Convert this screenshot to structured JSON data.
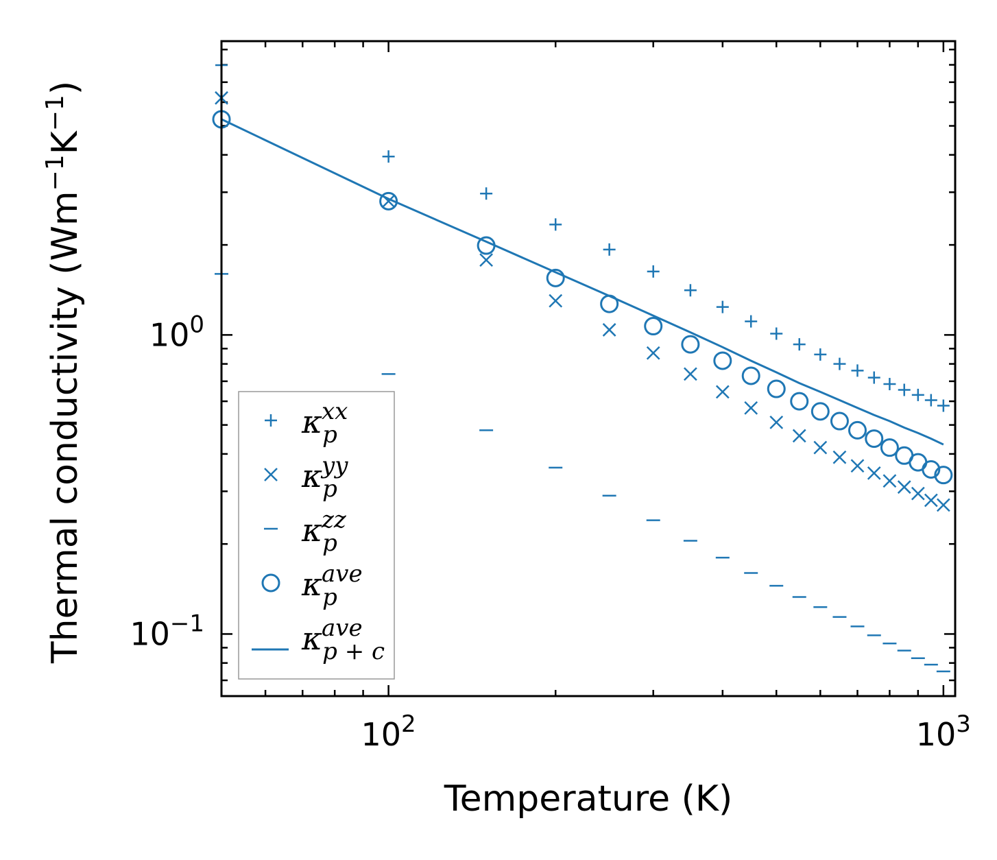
{
  "chart_data": {
    "type": "scatter",
    "xscale": "log",
    "yscale": "log",
    "xlim": [
      50,
      1050
    ],
    "ylim": [
      0.062,
      9.6
    ],
    "xlabel": "Temperature (K)",
    "ylabel": {
      "prefix": "Thermal conductivity (Wm",
      "sup1": "−1",
      "mid": "K",
      "sup2": "−1",
      "suffix": ")"
    },
    "xticks": [
      {
        "value": 100,
        "base": "10",
        "exp": "2"
      },
      {
        "value": 1000,
        "base": "10",
        "exp": "3"
      }
    ],
    "yticks": [
      {
        "value": 0.1,
        "base": "10",
        "exp": "−1"
      },
      {
        "value": 1,
        "base": "10",
        "exp": "0"
      }
    ],
    "color": "#1f77b4",
    "x": [
      50,
      100,
      150,
      200,
      250,
      300,
      350,
      400,
      450,
      500,
      550,
      600,
      650,
      700,
      750,
      800,
      850,
      900,
      950,
      1000
    ],
    "series": [
      {
        "name": "kappa_p_xx",
        "marker": "plus",
        "symbol": "κ",
        "sub": "p",
        "sup": "xx",
        "values": [
          7.98,
          3.95,
          2.97,
          2.34,
          1.93,
          1.63,
          1.41,
          1.24,
          1.11,
          1.01,
          0.93,
          0.86,
          0.8,
          0.76,
          0.72,
          0.685,
          0.655,
          0.63,
          0.605,
          0.58
        ]
      },
      {
        "name": "kappa_p_yy",
        "marker": "x",
        "symbol": "κ",
        "sub": "p",
        "sup": "yy",
        "values": [
          6.2,
          2.8,
          1.78,
          1.3,
          1.04,
          0.87,
          0.74,
          0.645,
          0.57,
          0.51,
          0.46,
          0.42,
          0.39,
          0.365,
          0.345,
          0.325,
          0.31,
          0.295,
          0.28,
          0.27
        ]
      },
      {
        "name": "kappa_p_zz",
        "marker": "hline",
        "symbol": "κ",
        "sub": "p",
        "sup": "zz",
        "values": [
          1.6,
          0.74,
          0.48,
          0.36,
          0.29,
          0.24,
          0.205,
          0.18,
          0.16,
          0.145,
          0.133,
          0.123,
          0.114,
          0.106,
          0.099,
          0.093,
          0.088,
          0.083,
          0.079,
          0.075
        ]
      },
      {
        "name": "kappa_p_ave",
        "marker": "circle",
        "symbol": "κ",
        "sub": "p",
        "sup": "ave",
        "values": [
          5.26,
          2.8,
          1.99,
          1.55,
          1.27,
          1.07,
          0.93,
          0.82,
          0.73,
          0.66,
          0.6,
          0.555,
          0.515,
          0.48,
          0.45,
          0.42,
          0.395,
          0.375,
          0.355,
          0.34
        ]
      },
      {
        "name": "kappa_pc_ave",
        "marker": "line",
        "symbol": "κ",
        "sub": "p + c",
        "sup": "ave",
        "values": [
          5.26,
          2.85,
          2.05,
          1.62,
          1.35,
          1.16,
          1.02,
          0.91,
          0.82,
          0.75,
          0.69,
          0.645,
          0.605,
          0.57,
          0.54,
          0.515,
          0.49,
          0.47,
          0.45,
          0.43
        ]
      }
    ],
    "legend_position": "lower-left"
  }
}
